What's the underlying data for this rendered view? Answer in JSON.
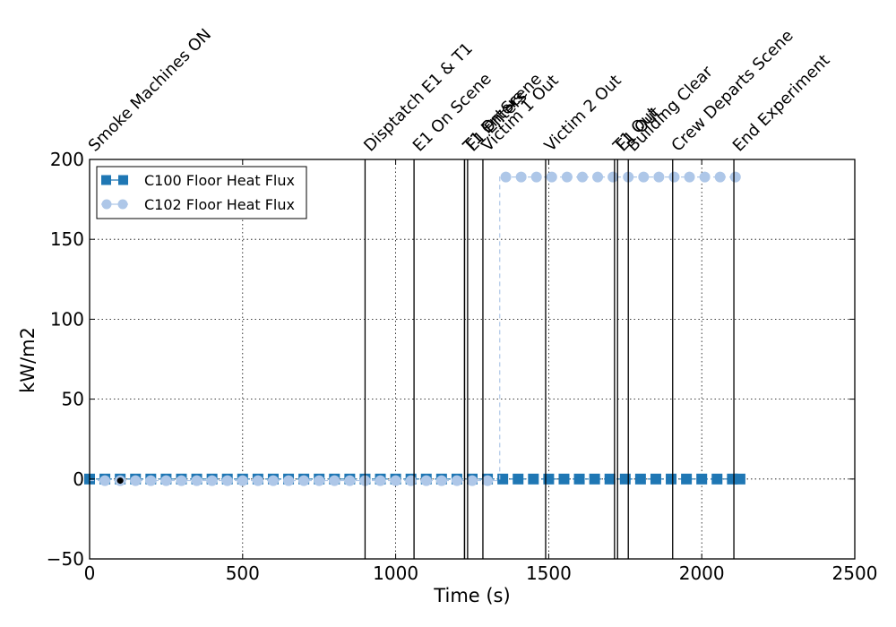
{
  "chart_data": {
    "type": "line",
    "xlabel": "Time (s)",
    "ylabel": "kW/m2",
    "xlim": [
      0,
      2500
    ],
    "ylim": [
      -50,
      200
    ],
    "xticks": [
      0,
      500,
      1000,
      1500,
      2000,
      2500
    ],
    "yticks": [
      -50,
      0,
      50,
      100,
      150,
      200
    ],
    "xtick_labels": [
      "0",
      "500",
      "1000",
      "1500",
      "2000",
      "2500"
    ],
    "ytick_labels": [
      "−50",
      "0",
      "50",
      "100",
      "150",
      "200"
    ],
    "grid": true,
    "legend_position": "top-left",
    "series": [
      {
        "name": "C100 Floor Heat Flux",
        "color": "#1f77b4",
        "marker": "square",
        "x": [
          0,
          50,
          100,
          150,
          200,
          250,
          300,
          350,
          400,
          450,
          500,
          550,
          600,
          650,
          700,
          750,
          800,
          850,
          900,
          950,
          1000,
          1050,
          1100,
          1150,
          1200,
          1250,
          1300,
          1350,
          1400,
          1450,
          1500,
          1550,
          1600,
          1650,
          1700,
          1750,
          1800,
          1850,
          1900,
          1950,
          2000,
          2050,
          2100,
          2125
        ],
        "y": [
          0,
          0,
          0,
          0,
          0,
          0,
          0,
          0,
          0,
          0,
          0,
          0,
          0,
          0,
          0,
          0,
          0,
          0,
          0,
          0,
          0,
          0,
          0,
          0,
          0,
          0,
          0,
          0,
          0,
          0,
          0,
          0,
          0,
          0,
          0,
          0,
          0,
          0,
          0,
          0,
          0,
          0,
          0,
          0
        ]
      },
      {
        "name": "C102 Floor Heat Flux",
        "color": "#aec7e8",
        "marker": "circle",
        "x": [
          0,
          50,
          100,
          150,
          200,
          250,
          300,
          350,
          400,
          450,
          500,
          550,
          600,
          650,
          700,
          750,
          800,
          850,
          900,
          950,
          1000,
          1050,
          1100,
          1150,
          1200,
          1250,
          1300,
          1340,
          1340,
          1360,
          1410,
          1460,
          1510,
          1560,
          1610,
          1660,
          1710,
          1760,
          1810,
          1860,
          1910,
          1960,
          2010,
          2060,
          2110,
          2125
        ],
        "y": [
          -1,
          -1,
          -1,
          -1,
          -1,
          -1,
          -1,
          -1,
          -1,
          -1,
          -1,
          -1,
          -1,
          -1,
          -1,
          -1,
          -1,
          -1,
          -1,
          -1,
          -1,
          -1,
          -1,
          -1,
          -1,
          -1,
          -1,
          -1,
          189,
          189,
          189,
          189,
          189,
          189,
          189,
          189,
          189,
          189,
          189,
          189,
          189,
          189,
          189,
          189,
          189,
          189
        ],
        "marker_x": [
          50,
          100,
          150,
          200,
          250,
          300,
          350,
          400,
          450,
          500,
          550,
          600,
          650,
          700,
          750,
          800,
          850,
          900,
          950,
          1000,
          1050,
          1100,
          1150,
          1200,
          1250,
          1300,
          1360,
          1410,
          1460,
          1510,
          1560,
          1610,
          1660,
          1710,
          1760,
          1810,
          1860,
          1910,
          1960,
          2010,
          2060,
          2110
        ],
        "marker_y": [
          -1,
          -1,
          -1,
          -1,
          -1,
          -1,
          -1,
          -1,
          -1,
          -1,
          -1,
          -1,
          -1,
          -1,
          -1,
          -1,
          -1,
          -1,
          -1,
          -1,
          -1,
          -1,
          -1,
          -1,
          -1,
          -1,
          189,
          189,
          189,
          189,
          189,
          189,
          189,
          189,
          189,
          189,
          189,
          189,
          189,
          189,
          189,
          189
        ]
      }
    ],
    "extra_points": [
      {
        "x": 100,
        "y": -1,
        "color": "#000000"
      }
    ],
    "events": [
      {
        "label": "Smoke Machines ON",
        "x": 0
      },
      {
        "label": "Disptatch E1 & T1",
        "x": 900
      },
      {
        "label": "E1 On Scene",
        "x": 1060
      },
      {
        "label": "T1 On Scene",
        "x": 1225
      },
      {
        "label": "E1 Enters",
        "x": 1235
      },
      {
        "label": "T1 Enters",
        "x": 1225
      },
      {
        "label": "Victim 1 Out",
        "x": 1285
      },
      {
        "label": "Victim 2 Out",
        "x": 1490
      },
      {
        "label": "T1 Out",
        "x": 1715
      },
      {
        "label": "E1 Out",
        "x": 1725
      },
      {
        "label": "Building Clear",
        "x": 1760
      },
      {
        "label": "Crew Departs Scene",
        "x": 1905
      },
      {
        "label": "End Experiment",
        "x": 2105
      }
    ]
  }
}
